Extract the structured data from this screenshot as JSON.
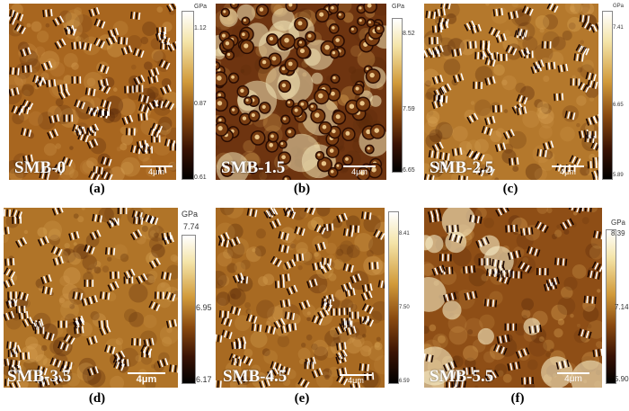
{
  "unit": "GPa",
  "panels": [
    {
      "label": "SMB-0",
      "caption": "(a)",
      "scale": "4μm",
      "ticks": [
        "1.12",
        "0.87",
        "0.61"
      ],
      "bg": "#a8661f"
    },
    {
      "label": "SMB-1.5",
      "caption": "(b)",
      "scale": "4μm",
      "ticks": [
        "8.52",
        "7.59",
        "6.65"
      ],
      "bg": "#6e3410"
    },
    {
      "label": "SMB-2.5",
      "caption": "(c)",
      "scale": "4μm",
      "ticks": [
        "7.41",
        "6.65",
        "5.89"
      ],
      "bg": "#b4782c"
    },
    {
      "label": "SMB-3.5",
      "caption": "(d)",
      "scale": "4μm",
      "ticks": [
        "7.74",
        "6.95",
        "6.17"
      ],
      "bg": "#b07428"
    },
    {
      "label": "SMB-4.5",
      "caption": "(e)",
      "scale": "4μm",
      "ticks": [
        "8.41",
        "7.50",
        "6.59"
      ],
      "bg": "#a86a22"
    },
    {
      "label": "SMB-5.5",
      "caption": "(f)",
      "scale": "4μm",
      "ticks": [
        "8.39",
        "7.14",
        "5.90"
      ],
      "bg": "#8e4e16"
    }
  ]
}
